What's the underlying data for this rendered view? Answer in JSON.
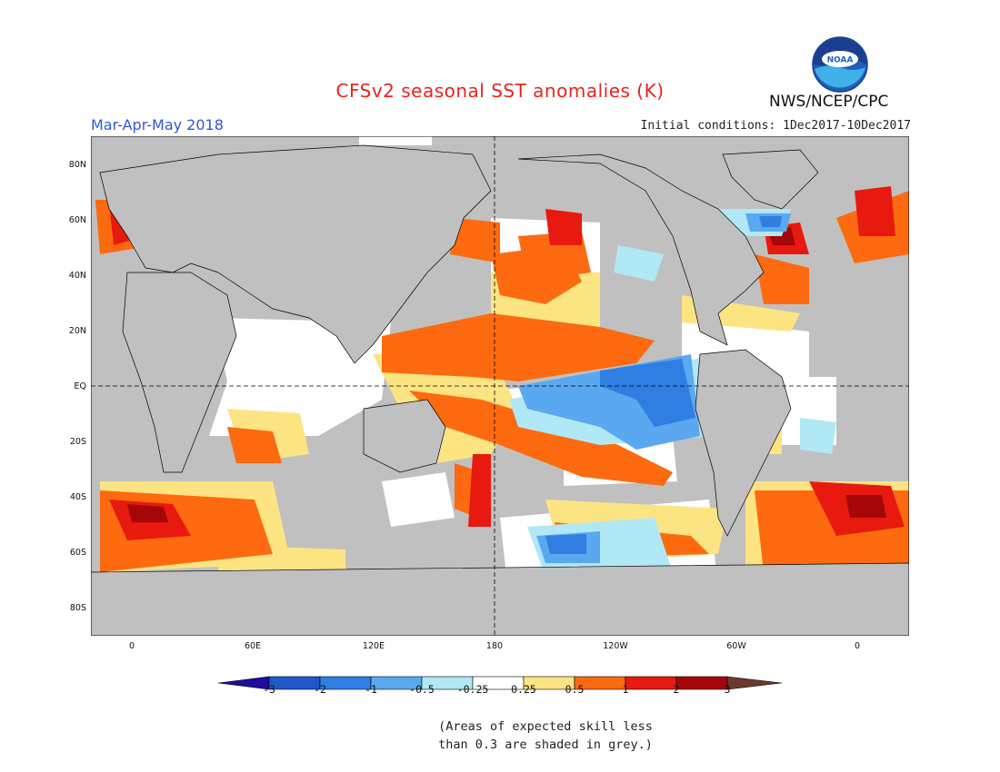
{
  "header": {
    "title": "CFSv2 seasonal SST anomalies (K)",
    "season": "Mar-Apr-May 2018",
    "initial_conditions": "Initial conditions: 1Dec2017-10Dec2017",
    "organization": "NWS/NCEP/CPC",
    "logo_text": "NOAA"
  },
  "map": {
    "x_ticks": [
      "0",
      "60E",
      "120E",
      "180",
      "120W",
      "60W",
      "0"
    ],
    "y_ticks": [
      "80N",
      "60N",
      "40N",
      "20N",
      "EQ",
      "20S",
      "40S",
      "60S",
      "80S"
    ]
  },
  "colorbar": {
    "labels": [
      "-3",
      "-2",
      "-1",
      "-0.5",
      "-0.25",
      "0.25",
      "0.5",
      "1",
      "2",
      "3"
    ],
    "colors": [
      "#1d0d9c",
      "#2057c9",
      "#2f7fe3",
      "#5aa8f0",
      "#b1e8f5",
      "#ffffff",
      "#fde483",
      "#fd6a0f",
      "#e8190f",
      "#a5060a",
      "#6a3a2a"
    ]
  },
  "palette": {
    "grey": "#c0c0c0",
    "orange": "#fd6a0f",
    "red": "#e8190f",
    "darkred": "#a5060a",
    "yellow": "#fde483",
    "blue": "#2f7fe3",
    "lightblue": "#5aa8f0",
    "cyan": "#b1e8f5",
    "title_red": "#e8241c",
    "season_blue": "#2f57d8"
  },
  "footnote": {
    "line1": "(Areas of expected skill less",
    "line2": "than 0.3 are shaded in grey.)"
  }
}
